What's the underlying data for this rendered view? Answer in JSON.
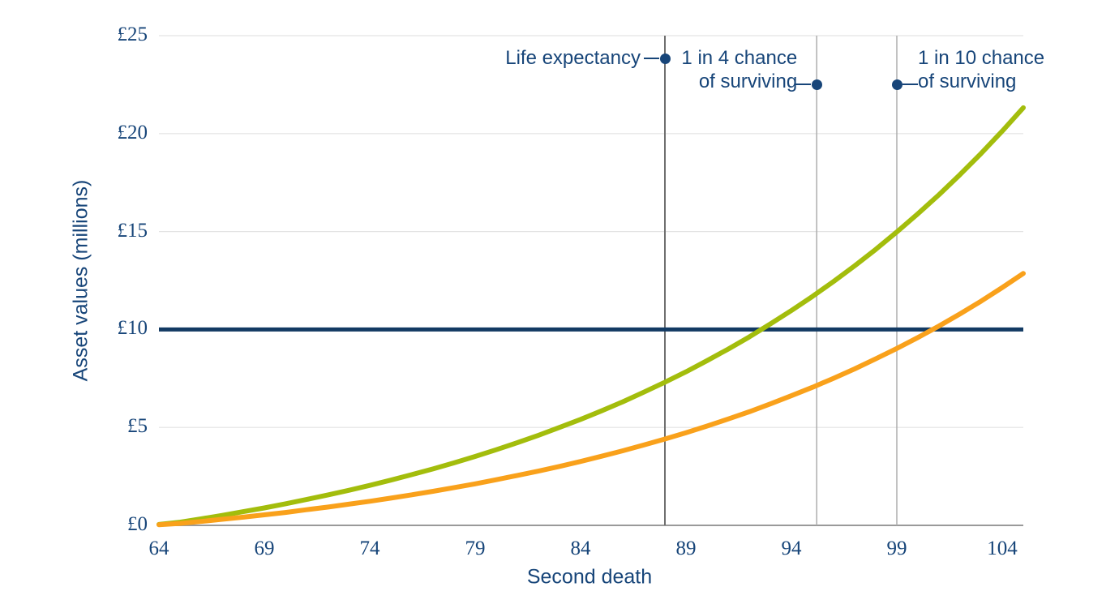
{
  "chart_data": {
    "type": "line",
    "title": "",
    "xlabel": "Second death",
    "ylabel": "Asset values (millions)",
    "xlim": [
      64,
      105
    ],
    "ylim": [
      0,
      25
    ],
    "grid": "horizontal",
    "legend": "none",
    "x_ticks": [
      "64",
      "69",
      "74",
      "79",
      "84",
      "89",
      "94",
      "99",
      "104"
    ],
    "y_ticks": [
      {
        "value": 0,
        "label": "£0"
      },
      {
        "value": 5,
        "label": "£5"
      },
      {
        "value": 10,
        "label": "£10"
      },
      {
        "value": 15,
        "label": "£15"
      },
      {
        "value": 20,
        "label": "£20"
      },
      {
        "value": 25,
        "label": "£25"
      }
    ],
    "ages": [
      64,
      65,
      66,
      67,
      68,
      69,
      70,
      71,
      72,
      73,
      74,
      75,
      76,
      77,
      78,
      79,
      80,
      81,
      82,
      83,
      84,
      85,
      86,
      87,
      88,
      89,
      90,
      91,
      92,
      93,
      94,
      95,
      96,
      97,
      98,
      99,
      100,
      101,
      102,
      103,
      104,
      105
    ],
    "series": [
      {
        "name": "green-growth-curve",
        "color": "#a3bd0c",
        "values": [
          0.05,
          0.16,
          0.33,
          0.51,
          0.7,
          0.89,
          1.1,
          1.32,
          1.55,
          1.79,
          2.04,
          2.31,
          2.59,
          2.88,
          3.19,
          3.52,
          3.86,
          4.22,
          4.6,
          5.0,
          5.41,
          5.85,
          6.31,
          6.8,
          7.31,
          7.84,
          8.41,
          9.0,
          9.62,
          10.28,
          10.97,
          11.69,
          12.45,
          13.25,
          14.09,
          14.98,
          15.91,
          16.88,
          17.91,
          18.99,
          20.13,
          21.32
        ]
      },
      {
        "name": "orange-growth-curve",
        "color": "#f9a11b",
        "values": [
          0.03,
          0.1,
          0.2,
          0.31,
          0.42,
          0.54,
          0.66,
          0.8,
          0.93,
          1.08,
          1.23,
          1.39,
          1.56,
          1.74,
          1.93,
          2.12,
          2.33,
          2.55,
          2.77,
          3.01,
          3.26,
          3.53,
          3.81,
          4.1,
          4.41,
          4.73,
          5.07,
          5.43,
          5.8,
          6.2,
          6.62,
          7.05,
          7.51,
          7.99,
          8.5,
          9.03,
          9.59,
          10.18,
          10.8,
          11.45,
          12.14,
          12.86
        ]
      }
    ],
    "reference_line": {
      "value": 10,
      "color": "#123a63"
    },
    "marker_lines": [
      {
        "name": "life-expectancy-line",
        "age": 88,
        "color": "#6f6f6f",
        "width": 2
      },
      {
        "name": "one-in-four-line",
        "age": 95.2,
        "color": "#adadad",
        "width": 1.5
      },
      {
        "name": "one-in-ten-line",
        "age": 99,
        "color": "#adadad",
        "width": 1.5
      }
    ],
    "annotations": [
      {
        "name": "life-expectancy",
        "lines": [
          "Life expectancy"
        ],
        "age": 88,
        "align": "right"
      },
      {
        "name": "one-in-four",
        "lines": [
          "1 in 4 chance",
          "of surviving"
        ],
        "age": 95.2,
        "align": "right"
      },
      {
        "name": "one-in-ten",
        "lines": [
          "1 in 10 chance",
          "of surviving"
        ],
        "age": 99,
        "align": "left"
      }
    ]
  },
  "colors": {
    "text_navy": "#174579",
    "reference_navy": "#123a63",
    "green": "#a3bd0c",
    "orange": "#f9a11b",
    "gridline": "#e3e3e3",
    "axis_line": "#9a9a9a"
  }
}
